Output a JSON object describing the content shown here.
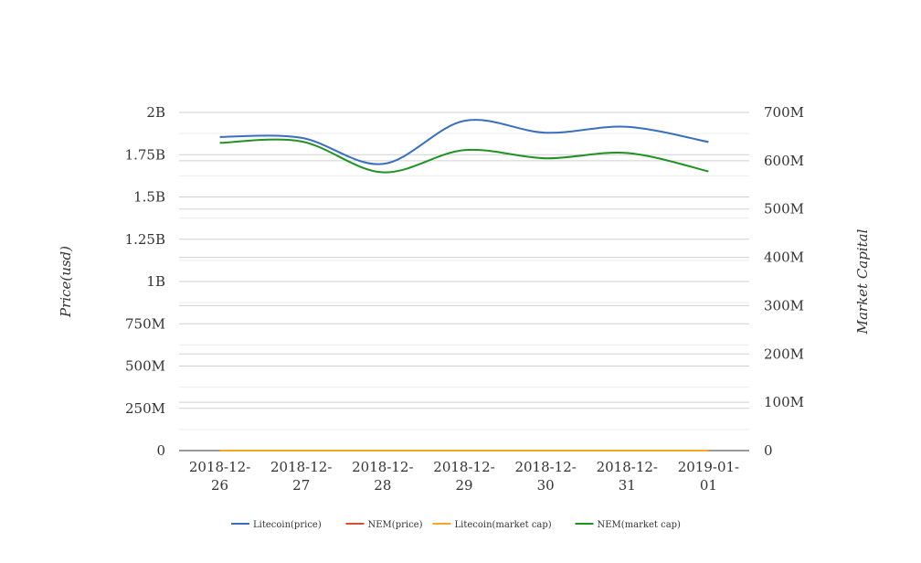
{
  "chart_data": {
    "type": "line",
    "categories": [
      "2018-12-26",
      "2018-12-27",
      "2018-12-28",
      "2018-12-29",
      "2018-12-30",
      "2018-12-31",
      "2019-01-01"
    ],
    "category_labels": [
      [
        "2018-12-",
        "26"
      ],
      [
        "2018-12-",
        "27"
      ],
      [
        "2018-12-",
        "28"
      ],
      [
        "2018-12-",
        "29"
      ],
      [
        "2018-12-",
        "30"
      ],
      [
        "2018-12-",
        "31"
      ],
      [
        "2019-01-",
        "01"
      ]
    ],
    "y_left": {
      "title": "Price(usd)",
      "range": [
        0,
        2000000000
      ],
      "ticks": [
        0,
        250000000,
        500000000,
        750000000,
        1000000000,
        1250000000,
        1500000000,
        1750000000,
        2000000000
      ],
      "tick_labels": [
        "0",
        "250M",
        "500M",
        "750M",
        "1B",
        "1.25B",
        "1.5B",
        "1.75B",
        "2B"
      ]
    },
    "y_right": {
      "title": "Market Capital",
      "range": [
        0,
        700000000
      ],
      "ticks": [
        0,
        100000000,
        200000000,
        300000000,
        400000000,
        500000000,
        600000000,
        700000000
      ],
      "tick_labels": [
        "0",
        "100M",
        "200M",
        "300M",
        "400M",
        "500M",
        "600M",
        "700M"
      ]
    },
    "series": [
      {
        "name": "Litecoin(price)",
        "axis": "left",
        "color": "#3a6ebf",
        "values": [
          1855000000,
          1850000000,
          1695000000,
          1950000000,
          1880000000,
          1915000000,
          1825000000
        ]
      },
      {
        "name": "NEM(price)",
        "axis": "left",
        "color": "#d94e2b",
        "values": [
          0.07,
          0.07,
          0.07,
          0.07,
          0.07,
          0.07,
          0.07
        ]
      },
      {
        "name": "Litecoin(market cap)",
        "axis": "right",
        "color": "#f5a623",
        "values": [
          31.5,
          31.2,
          30.1,
          33.6,
          32.7,
          33.0,
          31.8
        ]
      },
      {
        "name": "NEM(market cap)",
        "axis": "right",
        "color": "#1f9222",
        "values": [
          637000000,
          640000000,
          576000000,
          622000000,
          605000000,
          616000000,
          578000000
        ]
      }
    ],
    "grid": true,
    "legend_position": "bottom"
  }
}
